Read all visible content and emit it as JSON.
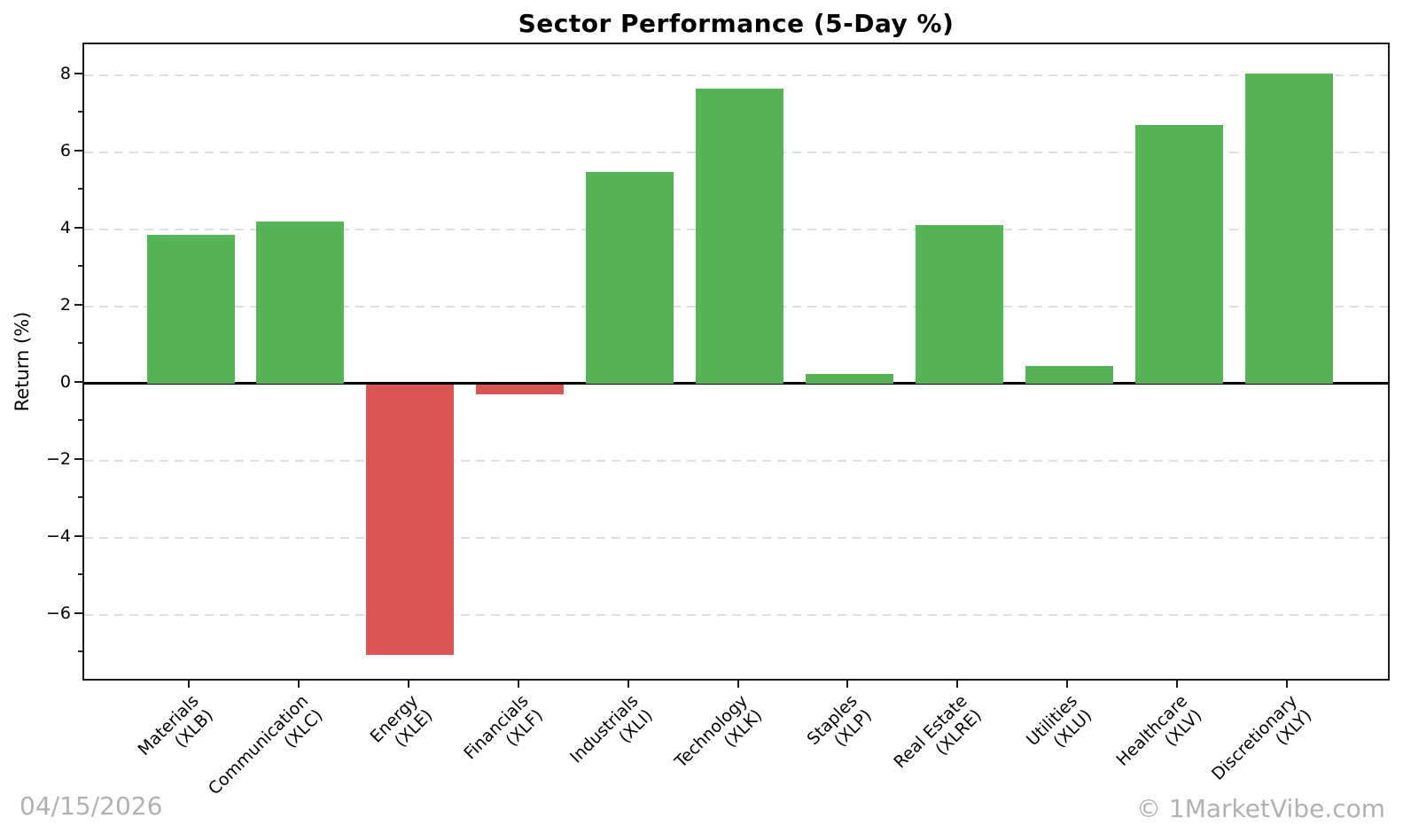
{
  "chart_data": {
    "type": "bar",
    "title": "Sector Performance (5-Day %)",
    "xlabel": "",
    "ylabel": "Return (%)",
    "categories": [
      "Materials\n(XLB)",
      "Communication\n(XLC)",
      "Energy\n(XLE)",
      "Financials\n(XLF)",
      "Industrials\n(XLI)",
      "Technology\n(XLK)",
      "Staples\n(XLP)",
      "Real Estate\n(XLRE)",
      "Utilities\n(XLU)",
      "Healthcare\n(XLV)",
      "Discretionary\n(XLY)"
    ],
    "tickers": [
      "XLB",
      "XLC",
      "XLE",
      "XLF",
      "XLI",
      "XLK",
      "XLP",
      "XLRE",
      "XLU",
      "XLV",
      "XLY"
    ],
    "values": [
      3.85,
      4.2,
      -7.0,
      -0.25,
      5.5,
      7.65,
      0.25,
      4.1,
      0.45,
      6.7,
      8.05
    ],
    "ylim": [
      -7.75,
      8.8
    ],
    "yticks_major": [
      8,
      6,
      4,
      2,
      0,
      -2,
      -4,
      -6
    ],
    "yticks_minor": [
      7,
      5,
      3,
      1,
      -1,
      -3,
      -5,
      -7
    ],
    "grid": "horizontal-dashed-on-major-ticks",
    "zero_line": true,
    "legend": "none",
    "colors": {
      "positive_bar": "#55b455",
      "negative_bar": "#d95454",
      "gridline": "#dedede",
      "axis": "#1a1a1a",
      "footer_text": "#b1b1b1"
    }
  },
  "footer": {
    "date": "04/15/2026",
    "watermark": "© 1MarketVibe.com"
  }
}
